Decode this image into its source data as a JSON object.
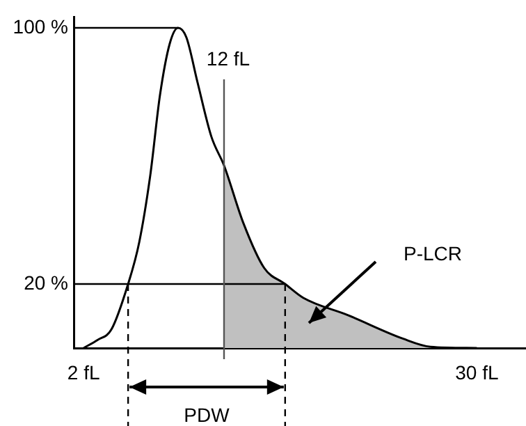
{
  "chart_data": {
    "type": "line",
    "series": [
      {
        "color": "#000000",
        "x": [
          2,
          2.99,
          3.98,
          5.17,
          5.96,
          6.75,
          7.44,
          8.13,
          8.73,
          9.32,
          10.11,
          11.1,
          12,
          13.38,
          14.86,
          16.35,
          17.63,
          20.8,
          24.76,
          26.7,
          30
        ],
        "values": [
          0,
          2.5,
          5.8,
          20,
          33,
          54,
          79,
          95,
          100,
          97,
          83,
          66,
          57,
          39,
          25,
          20,
          15.7,
          10.3,
          2.9,
          0.4,
          0
        ]
      },
      {
        "type": "area",
        "color": "#c0c0c0",
        "x": [
          12,
          13.38,
          14.86,
          16.35,
          17.63,
          20.8,
          24.76,
          26.7,
          30
        ],
        "values": [
          57,
          39,
          25,
          20,
          15.7,
          10.3,
          2.9,
          0.4,
          0
        ]
      }
    ],
    "xlim": [
      1.3,
      33.5
    ],
    "xticks": [
      {
        "value": 2,
        "label": "2 fL"
      },
      {
        "value": 30,
        "label": "30 fL"
      }
    ],
    "ylim": [
      0,
      103.3
    ],
    "yticks": [
      {
        "value": 20,
        "label": "20 %"
      },
      {
        "value": 100,
        "label": "100 %"
      }
    ],
    "ref_lines": [
      {
        "axis": "y",
        "value": 100
      },
      {
        "axis": "y",
        "value": 20
      },
      {
        "axis": "x",
        "value": 12,
        "label": "12 fL",
        "color": "#555555"
      },
      {
        "axis": "x",
        "value": 5.17,
        "line_style": "dashed"
      },
      {
        "axis": "x",
        "value": 16.35,
        "line_style": "dashed"
      }
    ],
    "annotations": [
      "PDW",
      "P-LCR"
    ],
    "grid": false,
    "legend": false
  }
}
